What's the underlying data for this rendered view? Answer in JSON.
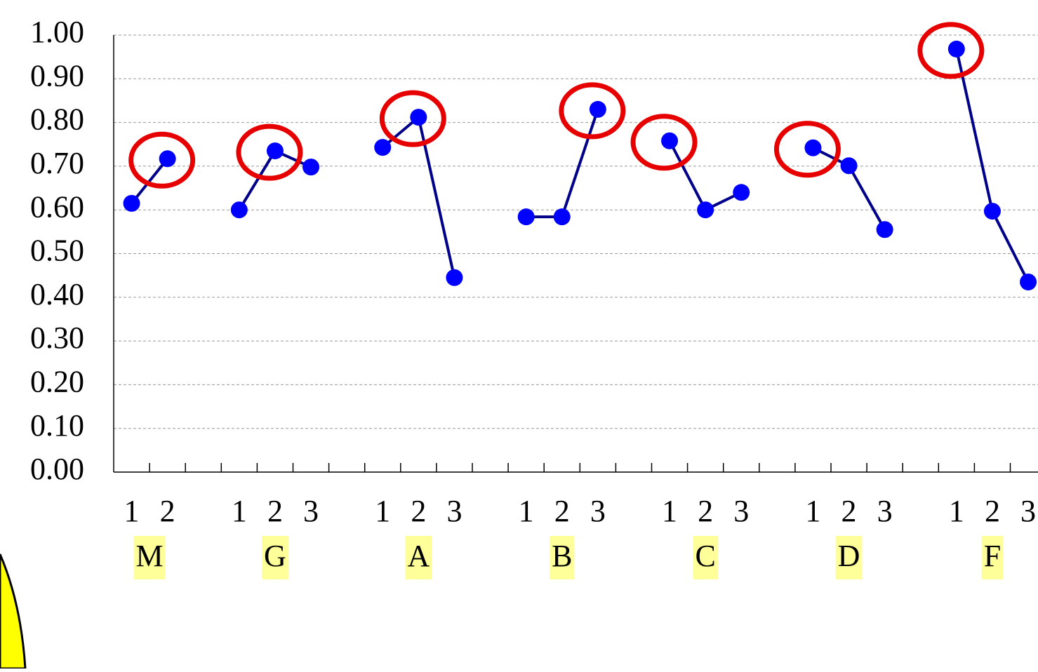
{
  "chart_data": {
    "type": "line",
    "groups": [
      {
        "name": "M",
        "levels": [
          "1",
          "2"
        ],
        "values": [
          0.615,
          0.717
        ]
      },
      {
        "name": "G",
        "levels": [
          "1",
          "2",
          "3"
        ],
        "values": [
          0.6,
          0.735,
          0.698
        ]
      },
      {
        "name": "A",
        "levels": [
          "1",
          "2",
          "3"
        ],
        "values": [
          0.743,
          0.812,
          0.445
        ]
      },
      {
        "name": "B",
        "levels": [
          "1",
          "2",
          "3"
        ],
        "values": [
          0.584,
          0.584,
          0.83
        ]
      },
      {
        "name": "C",
        "levels": [
          "1",
          "2",
          "3"
        ],
        "values": [
          0.758,
          0.6,
          0.64
        ]
      },
      {
        "name": "D",
        "levels": [
          "1",
          "2",
          "3"
        ],
        "values": [
          0.742,
          0.701,
          0.555
        ]
      },
      {
        "name": "F",
        "levels": [
          "1",
          "2",
          "3"
        ],
        "values": [
          0.968,
          0.597,
          0.435
        ]
      }
    ],
    "line_color": "#00008b",
    "marker_color": "#0000ff",
    "highlight_color": "#e60000",
    "highlight_max": true,
    "ylim": [
      0,
      1
    ],
    "yticks": [
      {
        "value": 0,
        "label": "0.00"
      },
      {
        "value": 0.1,
        "label": "0.10"
      },
      {
        "value": 0.2,
        "label": "0.20"
      },
      {
        "value": 0.3,
        "label": "0.30"
      },
      {
        "value": 0.4,
        "label": "0.40"
      },
      {
        "value": 0.5,
        "label": "0.50"
      },
      {
        "value": 0.6,
        "label": "0.60"
      },
      {
        "value": 0.7,
        "label": "0.70"
      },
      {
        "value": 0.8,
        "label": "0.80"
      },
      {
        "value": 0.9,
        "label": "0.90"
      },
      {
        "value": 1,
        "label": "1.00"
      }
    ],
    "grid": true
  }
}
